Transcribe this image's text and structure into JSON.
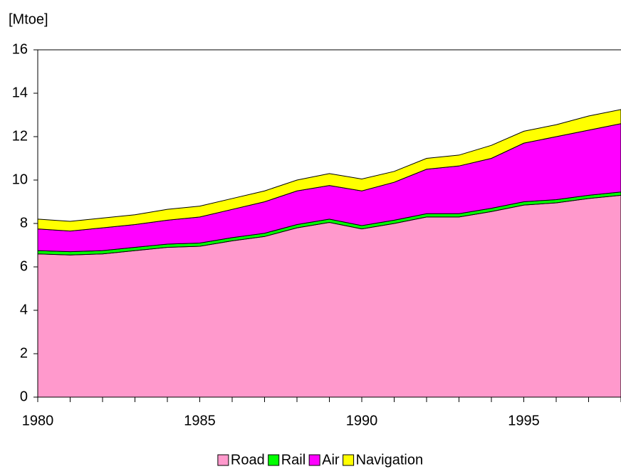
{
  "chart_data": {
    "type": "stacked_area",
    "y_axis_label": "[Mtoe]",
    "x": [
      1980,
      1981,
      1982,
      1983,
      1984,
      1985,
      1986,
      1987,
      1988,
      1989,
      1990,
      1991,
      1992,
      1993,
      1994,
      1995,
      1996,
      1997,
      1998
    ],
    "series": [
      {
        "name": "Road",
        "color": "#ff99cc",
        "values": [
          6.6,
          6.55,
          6.6,
          6.75,
          6.9,
          6.95,
          7.2,
          7.4,
          7.8,
          8.05,
          7.75,
          8.0,
          8.3,
          8.3,
          8.55,
          8.85,
          8.95,
          9.15,
          9.3
        ]
      },
      {
        "name": "Rail",
        "color": "#00ff00",
        "values": [
          0.15,
          0.15,
          0.15,
          0.15,
          0.15,
          0.15,
          0.15,
          0.15,
          0.15,
          0.15,
          0.15,
          0.15,
          0.15,
          0.15,
          0.15,
          0.15,
          0.15,
          0.15,
          0.15
        ]
      },
      {
        "name": "Air",
        "color": "#ff00ff",
        "values": [
          1.0,
          0.95,
          1.05,
          1.05,
          1.1,
          1.2,
          1.3,
          1.45,
          1.55,
          1.55,
          1.6,
          1.75,
          2.05,
          2.2,
          2.3,
          2.7,
          2.9,
          3.0,
          3.15
        ]
      },
      {
        "name": "Navigation",
        "color": "#ffff00",
        "values": [
          0.45,
          0.45,
          0.45,
          0.45,
          0.5,
          0.5,
          0.5,
          0.5,
          0.5,
          0.55,
          0.55,
          0.5,
          0.5,
          0.5,
          0.6,
          0.55,
          0.55,
          0.65,
          0.65
        ]
      }
    ],
    "xlim": [
      1980,
      1998
    ],
    "xticks": [
      1980,
      1985,
      1990,
      1995
    ],
    "ylim": [
      0,
      16
    ],
    "yticks": [
      0,
      2,
      4,
      6,
      8,
      10,
      12,
      14,
      16
    ],
    "legend": "bottom"
  }
}
